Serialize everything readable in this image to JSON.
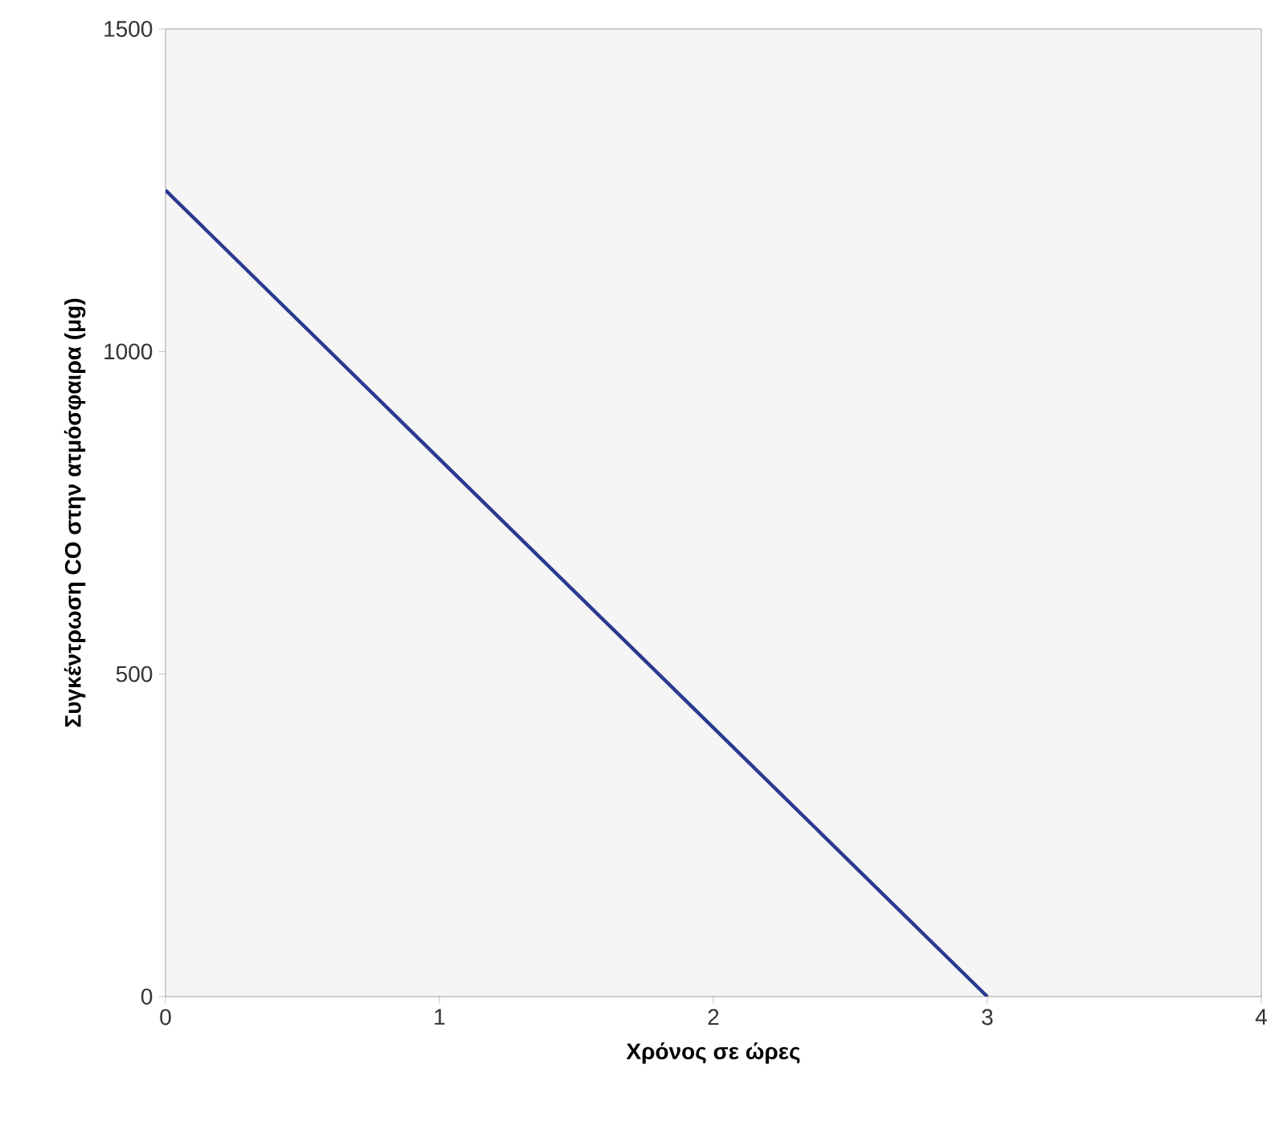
{
  "chart_data": {
    "type": "line",
    "xlabel": "Χρόνος σε ώρες",
    "ylabel": "Συγκέντρωση CO στην ατμόσφαιρα (μg)",
    "x": [
      0,
      3
    ],
    "series": [
      {
        "color": "#2b3990",
        "values": [
          1250,
          0
        ]
      }
    ],
    "xlim": [
      0,
      4
    ],
    "ylim": [
      0,
      1500
    ],
    "xticks": [
      0,
      1,
      2,
      3,
      4
    ],
    "yticks": [
      0,
      500,
      1000,
      1500
    ],
    "grid": false,
    "marker": "none",
    "line_style": "solid"
  }
}
